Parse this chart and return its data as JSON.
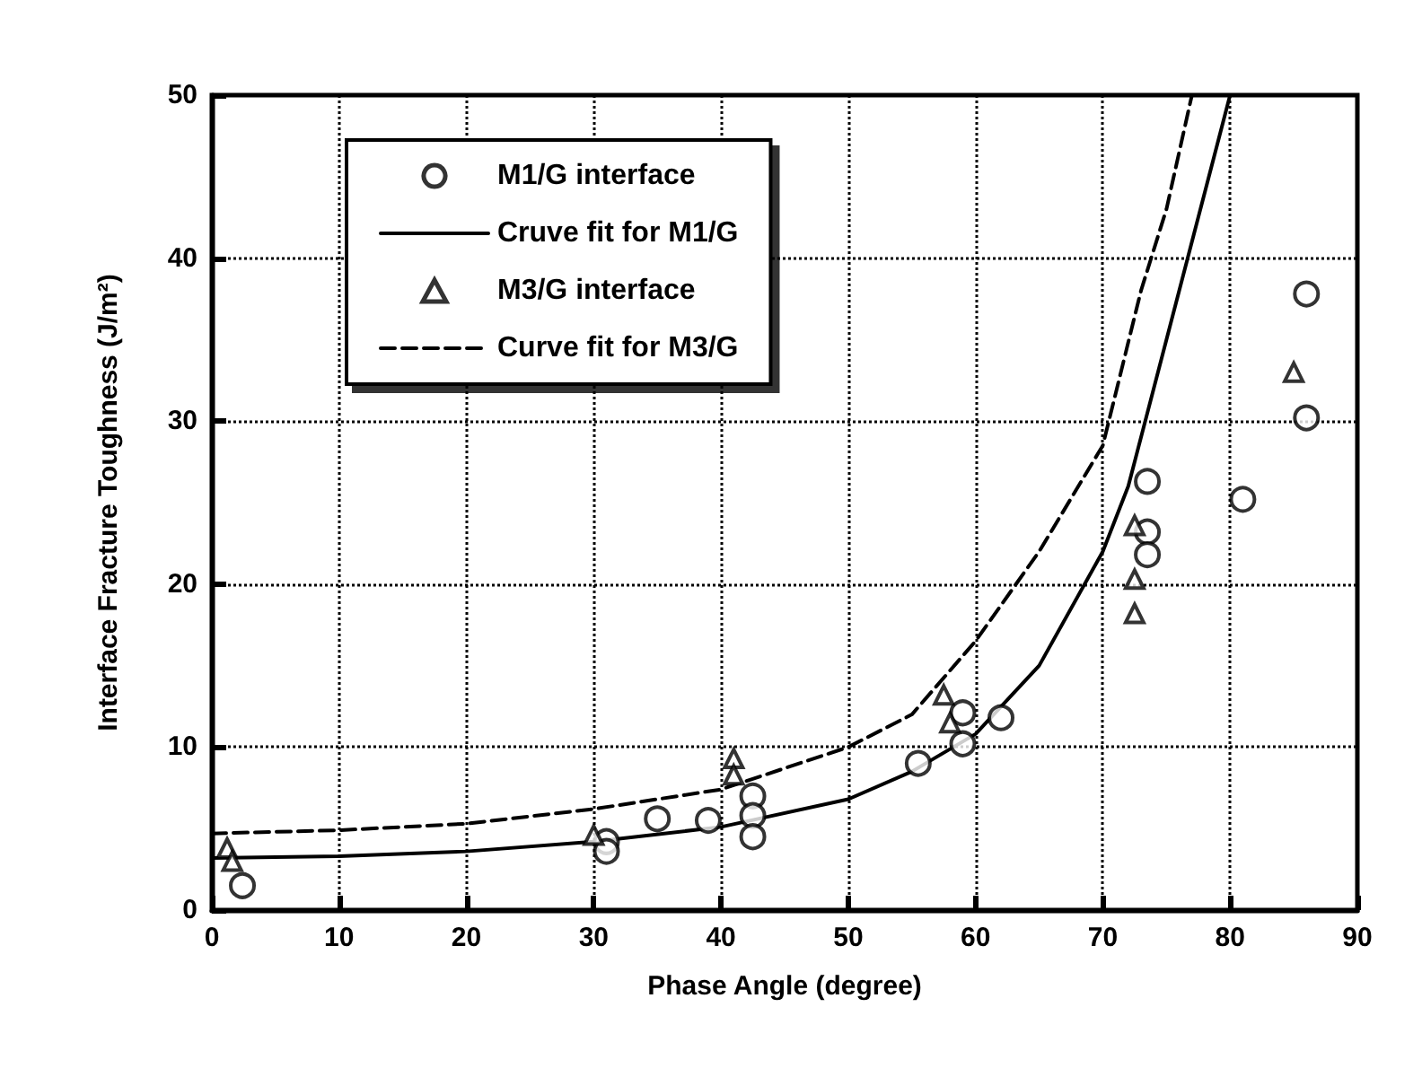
{
  "chart_data": {
    "type": "scatter",
    "xlabel": "Phase Angle (degree)",
    "ylabel": "Interface Fracture Toughness (J/m²)",
    "xlim": [
      0,
      90
    ],
    "xticks": [
      0,
      10,
      20,
      30,
      40,
      50,
      60,
      70,
      80,
      90
    ],
    "ylim": [
      0,
      50
    ],
    "yticks": [
      0,
      10,
      20,
      30,
      40,
      50
    ],
    "grid": true,
    "legend": "top left",
    "series": [
      {
        "name": "M1/G interface",
        "marker": "circle",
        "color": "#000000",
        "x": [
          2.4,
          31,
          31,
          35,
          39,
          42.5,
          42.5,
          42.5,
          55.5,
          59,
          59,
          62,
          73.5,
          73.5,
          73.5,
          81,
          86,
          86
        ],
        "values": [
          1.5,
          4.2,
          3.6,
          5.6,
          5.5,
          7,
          5.8,
          4.5,
          9,
          10.2,
          12.1,
          11.8,
          26.3,
          23.2,
          21.8,
          25.2,
          37.8,
          30.2
        ]
      },
      {
        "name": "Cruve fit for M1/G",
        "type": "line",
        "marker": "none",
        "line_style": "solid",
        "color": "#000000",
        "x": [
          0,
          10,
          20,
          30,
          40,
          50,
          55,
          60,
          65,
          70,
          72,
          75,
          78,
          80
        ],
        "values": [
          3.2,
          3.3,
          3.6,
          4.2,
          5.1,
          6.8,
          8.5,
          10.8,
          15,
          22,
          26,
          35,
          44,
          50
        ]
      },
      {
        "name": "M3/G interface",
        "marker": "triangle",
        "color": "#000000",
        "x": [
          1.2,
          1.6,
          30,
          41,
          41,
          57.5,
          58,
          72.5,
          72.5,
          72.5,
          85
        ],
        "values": [
          3.8,
          3,
          4.6,
          9.3,
          8.3,
          13.2,
          11.5,
          23.6,
          20.3,
          18.2,
          33
        ]
      },
      {
        "name": "Curve fit for M3/G",
        "type": "line",
        "marker": "none",
        "line_style": "dashed",
        "color": "#000000",
        "x": [
          0,
          10,
          20,
          30,
          40,
          50,
          55,
          60,
          65,
          70,
          73,
          75,
          77
        ],
        "values": [
          4.7,
          4.9,
          5.3,
          6.2,
          7.4,
          10,
          12,
          16.5,
          22,
          28.5,
          38,
          43,
          50
        ]
      }
    ]
  }
}
